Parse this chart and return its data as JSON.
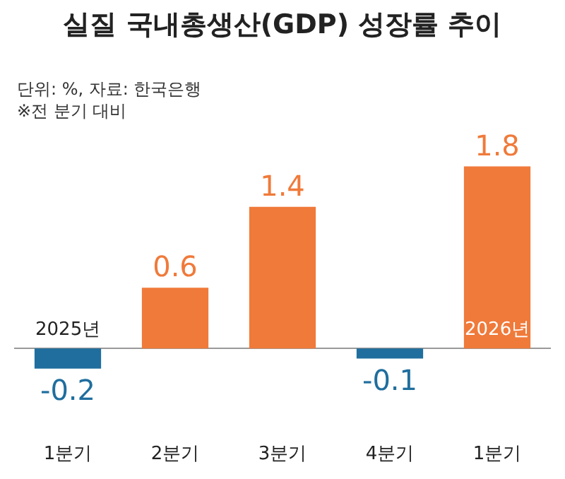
{
  "chart_data": {
    "type": "bar",
    "title": "실질 국내총생산(GDP) 성장률 추이",
    "subtitle": "단위: %, 자료: 한국은행\n※전 분기 대비",
    "categories": [
      "1분기",
      "2분기",
      "3분기",
      "4분기",
      "1분기"
    ],
    "values": [
      -0.2,
      0.6,
      1.4,
      -0.1,
      1.8
    ],
    "colors": [
      "#1f6e9e",
      "#f07a3a",
      "#f07a3a",
      "#1f6e9e",
      "#f07a3a"
    ],
    "data_labels": true,
    "legend": false,
    "annotations": [
      "2025년",
      "2026년"
    ]
  }
}
